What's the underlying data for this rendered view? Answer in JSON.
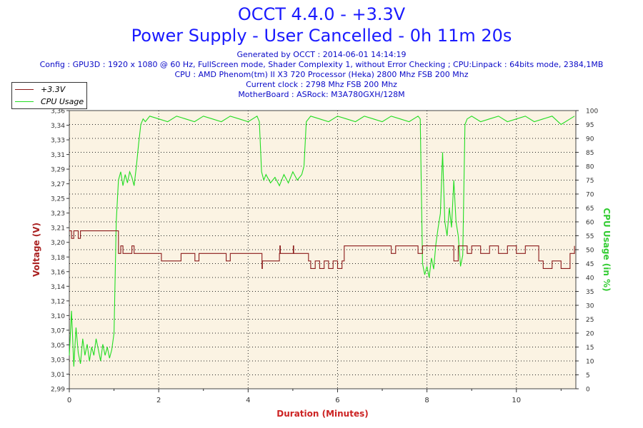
{
  "header": {
    "title_line1": "OCCT 4.4.0 - +3.3V",
    "title_line2": "Power Supply - User Cancelled - 0h 11m 20s",
    "generated": "Generated by OCCT : 2014-06-01 14:14:19",
    "config": "Config : GPU3D : 1920 x 1080 @ 60 Hz, FullScreen mode, Shader Complexity 1, without Error Checking ; CPU:Linpack : 64bits mode, 2384,1MB",
    "cpu": "CPU : AMD Phenom(tm) II X3 720 Processor (Heka) 2800 Mhz FSB 200 Mhz",
    "clock": "Current clock : 2798 Mhz FSB 200 Mhz",
    "motherboard": "MotherBoard : ASRock: M3A780GXH/128M"
  },
  "colors": {
    "voltage": "#8b1a1a",
    "cpu": "#22dd22",
    "plot_bg": "#fbf3e3",
    "title": "#1a1aff",
    "info": "#0a0ac8",
    "axis_label_left": "#aa2222",
    "axis_label_right": "#33cc33",
    "axis_label_x": "#cc2222"
  },
  "chart_data": {
    "type": "line",
    "xlabel": "Duration (Minutes)",
    "ylabel_left": "Voltage (V)",
    "ylabel_right": "CPU Usage (in %)",
    "xlim": [
      0,
      11.33
    ],
    "ylim_left": [
      2.99,
      3.36
    ],
    "ylim_right": [
      0,
      100
    ],
    "x_ticks": [
      "0",
      "2",
      "4",
      "6",
      "8",
      "10"
    ],
    "y_left_ticks": [
      "2,99",
      "3,01",
      "3,03",
      "3,05",
      "3,07",
      "3,10",
      "3,12",
      "3,14",
      "3,16",
      "3,18",
      "3,20",
      "3,21",
      "3,23",
      "3,25",
      "3,27",
      "3,29",
      "3,31",
      "3,33",
      "3,34",
      "3,36"
    ],
    "y_right_ticks": [
      "0",
      "5",
      "10",
      "15",
      "20",
      "25",
      "30",
      "35",
      "40",
      "45",
      "50",
      "55",
      "60",
      "65",
      "70",
      "75",
      "80",
      "85",
      "90",
      "95",
      "100"
    ],
    "grid": true,
    "legend_position": "top-left",
    "series": [
      {
        "name": "+3.3V",
        "axis": "left",
        "x": [
          0,
          0.05,
          0.1,
          0.15,
          0.2,
          0.25,
          0.3,
          0.35,
          0.4,
          0.5,
          0.6,
          1.08,
          1.1,
          1.15,
          1.2,
          1.25,
          1.3,
          1.35,
          1.4,
          1.45,
          1.5,
          1.55,
          1.6,
          2.05,
          2.06,
          2.5,
          2.8,
          2.81,
          2.9,
          3.5,
          3.51,
          3.6,
          4.0,
          4.3,
          4.31,
          4.32,
          4.7,
          4.71,
          4.72,
          4.8,
          5.0,
          5.01,
          5.02,
          5.3,
          5.35,
          5.4,
          5.5,
          5.6,
          5.7,
          5.8,
          5.9,
          6.0,
          6.1,
          6.15,
          6.2,
          6.8,
          7.0,
          7.1,
          7.2,
          7.3,
          7.5,
          7.7,
          7.8,
          7.9,
          7.95,
          8.0,
          8.1,
          8.2,
          8.3,
          8.4,
          8.5,
          8.6,
          8.7,
          8.8,
          8.9,
          9.0,
          9.2,
          9.4,
          9.6,
          9.8,
          10.0,
          10.2,
          10.4,
          10.5,
          10.6,
          10.8,
          11.0,
          11.2,
          11.3
        ],
        "values": [
          3.2,
          3.19,
          3.2,
          3.2,
          3.19,
          3.2,
          3.2,
          3.2,
          3.2,
          3.2,
          3.2,
          3.2,
          3.17,
          3.18,
          3.17,
          3.17,
          3.17,
          3.17,
          3.18,
          3.17,
          3.17,
          3.17,
          3.17,
          3.17,
          3.16,
          3.17,
          3.17,
          3.16,
          3.17,
          3.17,
          3.16,
          3.17,
          3.17,
          3.17,
          3.15,
          3.16,
          3.17,
          3.18,
          3.17,
          3.17,
          3.17,
          3.18,
          3.17,
          3.17,
          3.16,
          3.15,
          3.16,
          3.15,
          3.16,
          3.15,
          3.16,
          3.15,
          3.16,
          3.18,
          3.18,
          3.18,
          3.18,
          3.18,
          3.17,
          3.18,
          3.18,
          3.18,
          3.17,
          3.18,
          3.18,
          3.18,
          3.18,
          3.18,
          3.18,
          3.18,
          3.18,
          3.16,
          3.18,
          3.18,
          3.17,
          3.18,
          3.17,
          3.18,
          3.17,
          3.18,
          3.17,
          3.18,
          3.18,
          3.16,
          3.15,
          3.16,
          3.15,
          3.17,
          3.18
        ]
      },
      {
        "name": "CPU Usage",
        "axis": "right",
        "x": [
          0,
          0.05,
          0.1,
          0.15,
          0.2,
          0.25,
          0.3,
          0.35,
          0.4,
          0.45,
          0.5,
          0.55,
          0.6,
          0.65,
          0.7,
          0.75,
          0.8,
          0.85,
          0.9,
          0.95,
          1.0,
          1.05,
          1.1,
          1.15,
          1.2,
          1.25,
          1.3,
          1.35,
          1.4,
          1.45,
          1.5,
          1.55,
          1.6,
          1.65,
          1.7,
          1.8,
          2.0,
          2.2,
          2.4,
          2.6,
          2.8,
          3.0,
          3.2,
          3.4,
          3.6,
          3.8,
          4.0,
          4.2,
          4.25,
          4.3,
          4.35,
          4.4,
          4.5,
          4.6,
          4.7,
          4.8,
          4.9,
          5.0,
          5.1,
          5.2,
          5.25,
          5.3,
          5.4,
          5.6,
          5.8,
          6.0,
          6.2,
          6.4,
          6.6,
          6.8,
          7.0,
          7.2,
          7.4,
          7.6,
          7.8,
          7.85,
          7.9,
          7.95,
          8.0,
          8.05,
          8.1,
          8.15,
          8.2,
          8.25,
          8.3,
          8.35,
          8.4,
          8.45,
          8.5,
          8.55,
          8.6,
          8.65,
          8.7,
          8.75,
          8.8,
          8.85,
          8.9,
          9.0,
          9.2,
          9.4,
          9.6,
          9.8,
          10.0,
          10.2,
          10.4,
          10.6,
          10.8,
          11.0,
          11.2,
          11.3
        ],
        "values": [
          12,
          28,
          8,
          22,
          13,
          9,
          18,
          12,
          16,
          10,
          15,
          12,
          18,
          14,
          10,
          16,
          12,
          15,
          11,
          14,
          20,
          60,
          75,
          78,
          73,
          77,
          74,
          78,
          76,
          73,
          80,
          88,
          95,
          97,
          96,
          98,
          97,
          96,
          98,
          97,
          96,
          98,
          97,
          96,
          98,
          97,
          96,
          98,
          96,
          78,
          75,
          77,
          74,
          76,
          73,
          77,
          74,
          78,
          75,
          77,
          80,
          96,
          98,
          97,
          96,
          98,
          97,
          96,
          98,
          97,
          96,
          98,
          97,
          96,
          98,
          97,
          45,
          41,
          44,
          40,
          47,
          43,
          52,
          58,
          63,
          85,
          60,
          55,
          65,
          58,
          75,
          60,
          55,
          44,
          48,
          95,
          97,
          98,
          96,
          97,
          98,
          96,
          97,
          98,
          96,
          97,
          98,
          95,
          97,
          98
        ]
      }
    ]
  }
}
